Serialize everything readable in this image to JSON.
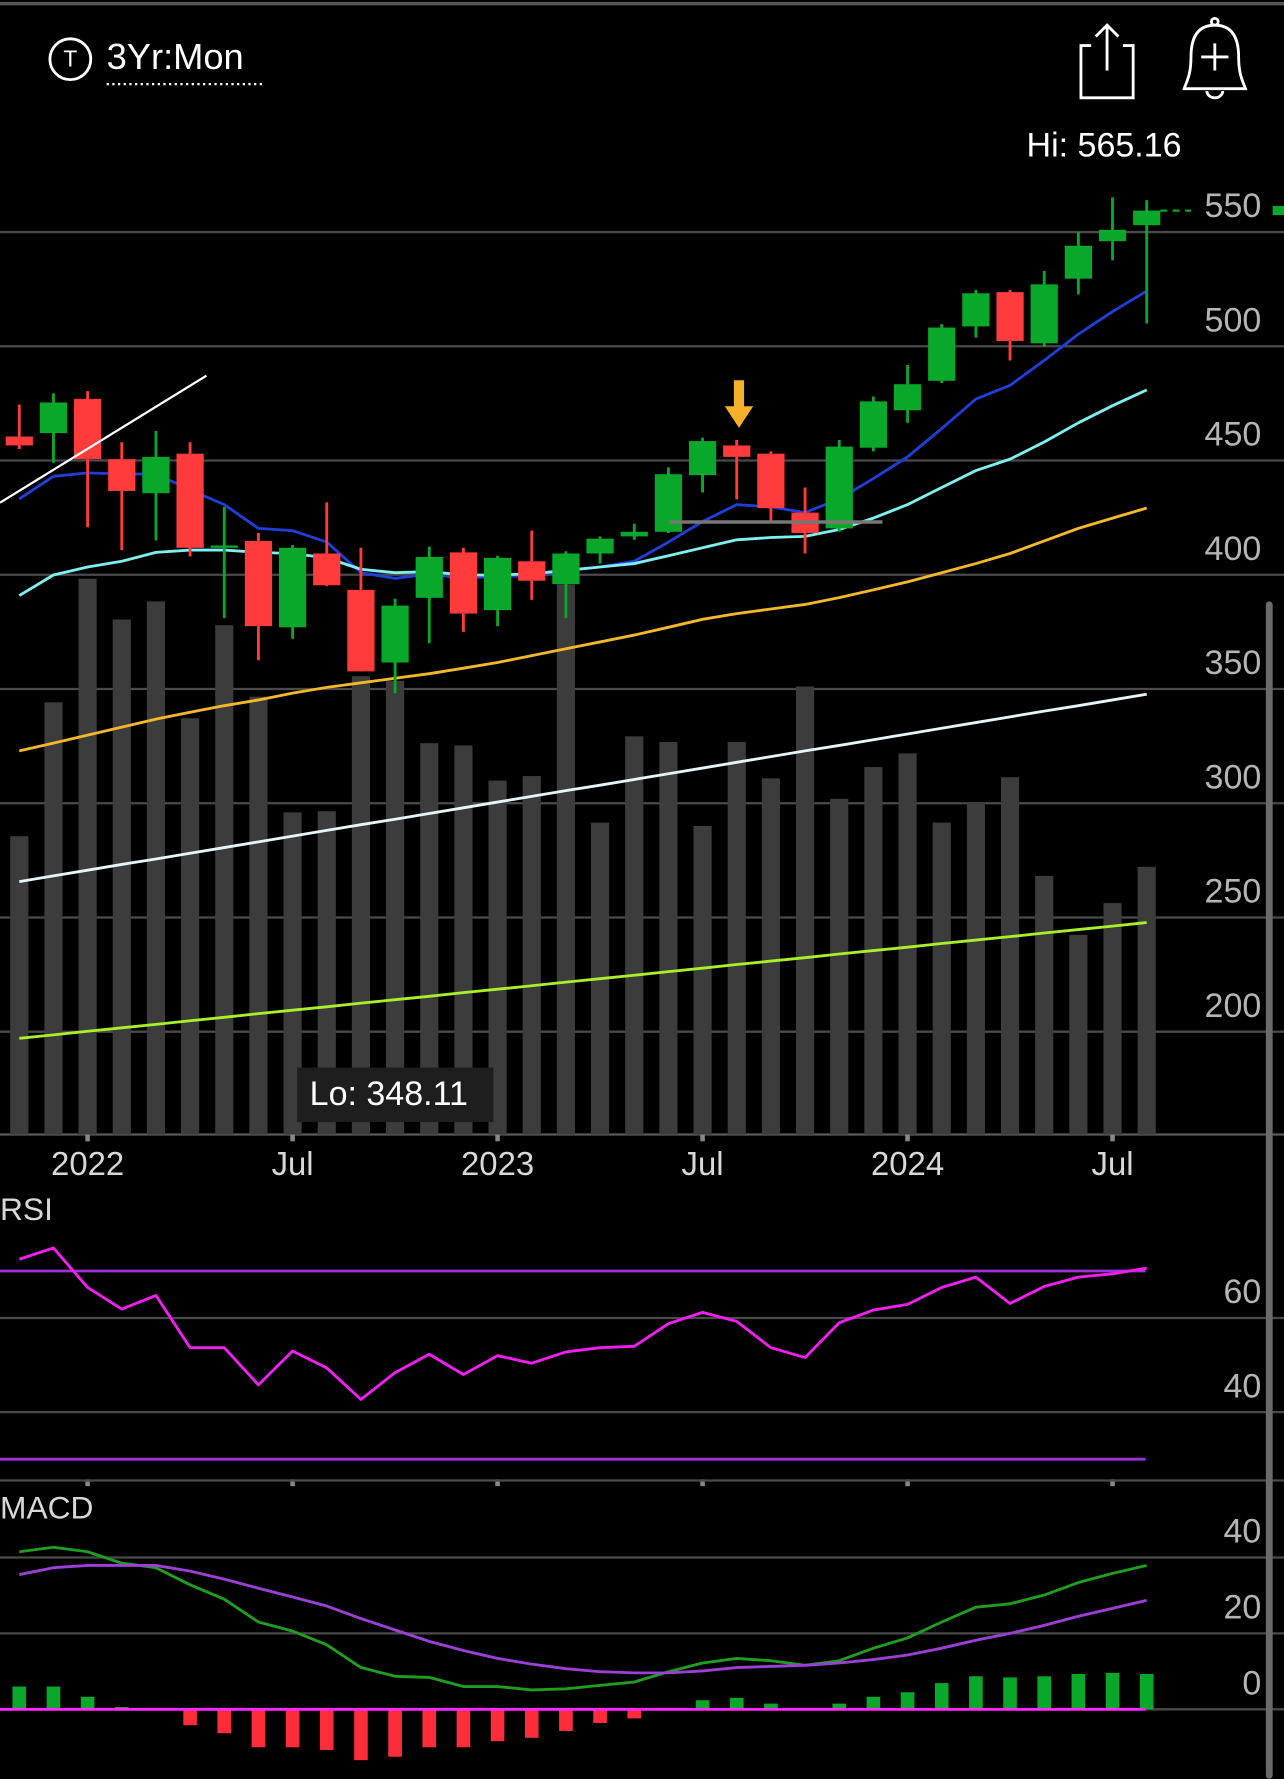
{
  "header": {
    "icon": "T",
    "range": "3Yr:Mon"
  },
  "chart_data": [
    {
      "type": "candlestick",
      "categories": [
        null,
        null,
        "2022",
        null,
        null,
        null,
        null,
        null,
        "Jul",
        null,
        null,
        null,
        null,
        null,
        "2023",
        null,
        null,
        null,
        null,
        null,
        "Jul",
        null,
        null,
        null,
        null,
        null,
        "2024",
        null,
        null,
        null,
        null,
        null,
        "Jul",
        null
      ],
      "open": [
        460.5,
        462,
        477,
        450.6,
        435.7,
        453,
        411.8,
        414.8,
        377,
        409.3,
        393.4,
        361.6,
        389.9,
        409.8,
        384.5,
        405.9,
        395.9,
        409.3,
        416.8,
        418.8,
        443.6,
        456.6,
        453,
        427.2,
        420.3,
        455.6,
        472,
        484.9,
        508.7,
        523.7,
        501.3,
        529.6,
        546,
        553
      ],
      "high": [
        474.5,
        479.4,
        480.4,
        458,
        463,
        458,
        429.7,
        418.3,
        413,
        431.7,
        411.8,
        389.5,
        412.3,
        411.8,
        408.3,
        419.3,
        410.3,
        416.8,
        422.3,
        447,
        460,
        459,
        454,
        438.2,
        459,
        478,
        491.8,
        509.7,
        524.7,
        524.7,
        533,
        550,
        565.16,
        564
      ],
      "low": [
        455,
        449,
        420.8,
        410.8,
        415,
        408,
        381,
        362.6,
        372,
        395,
        357.7,
        348.11,
        370,
        375,
        377.5,
        389,
        381,
        404.9,
        415.3,
        418.3,
        436,
        433,
        423,
        409.3,
        418.8,
        454,
        466.5,
        483.9,
        503.8,
        493.8,
        499.8,
        522.7,
        537.6,
        510
      ],
      "close": [
        456.6,
        475.4,
        450.6,
        436.7,
        451.6,
        411.8,
        412.8,
        377.5,
        411.8,
        395.4,
        357.7,
        386.5,
        407.8,
        383,
        407.4,
        397.4,
        409.3,
        415.8,
        418.8,
        444,
        458.5,
        451.6,
        429.2,
        418.3,
        456.1,
        475.9,
        483.4,
        508.2,
        523.2,
        502.3,
        527.1,
        544,
        551,
        559.4
      ],
      "up_color": "#0aa82a",
      "down_color": "#ff3b3b",
      "overlays": [
        {
          "color": "#1f3fd9",
          "values": [
            433.2,
            443.1,
            444.6,
            444.1,
            444.1,
            437.2,
            430.7,
            420.3,
            419.3,
            414.3,
            400.9,
            398.4,
            400.4,
            398.4,
            399.4,
            399.4,
            401.9,
            403.4,
            405.9,
            414.3,
            423.3,
            430.7,
            429.7,
            427.2,
            433.2,
            442.1,
            451.6,
            464,
            476.9,
            482.9,
            493.8,
            505.3,
            515.2,
            524.2
          ]
        },
        {
          "color": "#7ff0f0",
          "values": [
            390.9,
            399.9,
            403.4,
            405.9,
            409.8,
            410.8,
            410.8,
            409.8,
            409.3,
            407.4,
            402.4,
            400.9,
            401.4,
            399.9,
            399.9,
            400.4,
            401.9,
            403.4,
            404.9,
            408.3,
            411.8,
            415.3,
            416.3,
            416.8,
            419.8,
            424.8,
            430.7,
            438.2,
            445.6,
            450.6,
            458.1,
            466.5,
            474,
            480.9
          ]
        },
        {
          "color": "#f5b82a",
          "values": [
            322.9,
            326.3,
            329.8,
            333.3,
            336.8,
            339.8,
            342.7,
            345.2,
            348.2,
            350.7,
            352.7,
            354.7,
            356.7,
            359.1,
            361.6,
            364.6,
            367.6,
            370.6,
            373.6,
            377,
            380.5,
            383,
            385,
            387,
            390,
            393.4,
            396.9,
            400.9,
            404.9,
            409.3,
            414.8,
            420.3,
            424.8,
            429.2
          ]
        },
        {
          "color": "#e6f6f6",
          "values": [
            265.7,
            268.2,
            270.7,
            273.2,
            275.6,
            278.1,
            280.6,
            283.1,
            285.6,
            288.1,
            290.6,
            293,
            295.5,
            298,
            300.5,
            303,
            305.5,
            307.9,
            310.4,
            312.9,
            315.4,
            317.9,
            320.4,
            322.9,
            325.3,
            327.8,
            330.3,
            332.8,
            335.3,
            337.8,
            340.3,
            342.7,
            345.2,
            347.7
          ]
        },
        {
          "color": "#a8f02a",
          "values": [
            197.1,
            198.6,
            200.2,
            201.7,
            203.2,
            204.8,
            206.3,
            207.9,
            209.4,
            210.9,
            212.5,
            214,
            215.5,
            217.1,
            218.6,
            220.1,
            221.7,
            223.2,
            224.7,
            226.3,
            227.8,
            229.4,
            230.9,
            232.4,
            234,
            235.5,
            237,
            238.6,
            240.1,
            241.6,
            243.2,
            244.7,
            246.2,
            247.8
          ]
        }
      ],
      "volume": {
        "color": "#3c3c3c",
        "ylim": [
          0,
          100
        ],
        "values": [
          52.6,
          76.2,
          98,
          90.8,
          94,
          73.4,
          89.8,
          77.2,
          56.8,
          57,
          80.8,
          80,
          69,
          68.6,
          62.4,
          63.2,
          97,
          55,
          70.2,
          69.2,
          54.4,
          69.2,
          62.8,
          79,
          59.2,
          64.8,
          67.2,
          55,
          58.6,
          63,
          45.6,
          35.2,
          40.8,
          47.2
        ]
      },
      "ylim": [
        155,
        577
      ],
      "yticks": [
        200,
        250,
        300,
        350,
        400,
        450,
        500,
        550
      ],
      "grid": true,
      "annotations": [
        "Hi: 565.16",
        "Lo: 348.11"
      ]
    },
    {
      "type": "line",
      "title": "RSI",
      "series": [
        {
          "color": "#f21ef2",
          "values": [
            72.5,
            74.9,
            66.5,
            61.9,
            64.8,
            53.7,
            53.7,
            45.8,
            53,
            49.4,
            42.7,
            48.4,
            52.3,
            48,
            52,
            50.4,
            52.8,
            53.7,
            54,
            58.8,
            61.2,
            59.3,
            53.7,
            51.6,
            59,
            61.7,
            62.9,
            66.5,
            68.7,
            63.1,
            66.7,
            68.7,
            69.4,
            70.6
          ]
        }
      ],
      "bands": [
        70,
        30
      ],
      "band_color": "#a030d8",
      "ylim": [
        25,
        79
      ],
      "yticks": [
        40,
        60
      ],
      "grid": true
    },
    {
      "type": "macd",
      "title": "MACD",
      "series": [
        {
          "color": "#1f9e1f",
          "values": [
            41.5,
            42.7,
            41.5,
            38.5,
            37.3,
            32.8,
            29,
            23,
            20.6,
            17,
            11,
            8.7,
            8.4,
            6,
            6,
            5.1,
            5.4,
            6.3,
            7.2,
            9.9,
            12.2,
            13.4,
            12.8,
            11.6,
            12.8,
            16.1,
            18.8,
            23,
            26.9,
            27.8,
            30.1,
            33.4,
            35.8,
            37.9
          ]
        },
        {
          "color": "#9b3fd6",
          "values": [
            35.5,
            37.3,
            37.9,
            37.9,
            37.9,
            36.4,
            34.3,
            31.9,
            29.6,
            27.2,
            23.9,
            20.9,
            17.9,
            15.5,
            13.4,
            11.9,
            10.7,
            9.9,
            9.6,
            9.6,
            10.1,
            11,
            11.3,
            11.6,
            12.2,
            13.1,
            14.3,
            16.1,
            18.2,
            20,
            22.1,
            24.5,
            26.6,
            28.7
          ]
        }
      ],
      "histogram": {
        "up_color": "#0aa82a",
        "down_color": "#ff2d3a",
        "values": [
          6,
          6,
          3.3,
          0.6,
          0,
          -4.2,
          -6.3,
          -10,
          -10,
          -10.7,
          -13.4,
          -12.5,
          -10,
          -10,
          -8.4,
          -7.5,
          -5.7,
          -3.6,
          -2.4,
          0,
          2.4,
          3,
          1.5,
          0.3,
          1.5,
          3.3,
          4.5,
          6.9,
          8.7,
          8.4,
          8.7,
          9.3,
          9.6,
          9.3
        ]
      },
      "zero_color": "#ff2aff",
      "ylim": [
        -18,
        57
      ],
      "yticks": [
        0,
        20,
        40
      ],
      "grid": true
    }
  ]
}
